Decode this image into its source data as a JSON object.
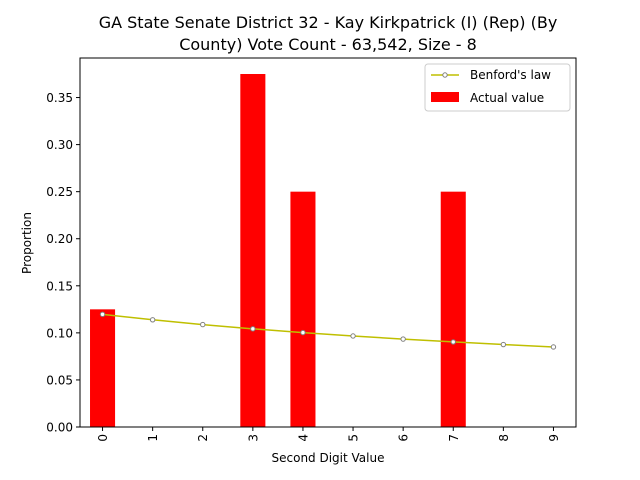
{
  "chart_data": {
    "type": "bar",
    "title_lines": [
      "GA State Senate District 32 - Kay Kirkpatrick (I) (Rep) (By",
      "County) Vote Count - 63,542, Size - 8"
    ],
    "xlabel": "Second Digit Value",
    "ylabel": "Proportion",
    "categories": [
      "0",
      "1",
      "2",
      "3",
      "4",
      "5",
      "6",
      "7",
      "8",
      "9"
    ],
    "ylim": [
      0,
      0.392
    ],
    "yticks": [
      0.0,
      0.05,
      0.1,
      0.15,
      0.2,
      0.25,
      0.3,
      0.35
    ],
    "ytick_labels": [
      "0.00",
      "0.05",
      "0.10",
      "0.15",
      "0.20",
      "0.25",
      "0.30",
      "0.35"
    ],
    "legend_position": "top-right",
    "series": [
      {
        "name": "Benford's law",
        "kind": "line",
        "color": "#bfbf00",
        "marker_edge": "#808080",
        "values": [
          0.1197,
          0.1139,
          0.1088,
          0.1043,
          0.1003,
          0.0967,
          0.0934,
          0.0904,
          0.0876,
          0.085
        ]
      },
      {
        "name": "Actual value",
        "kind": "bar",
        "color": "#ff0000",
        "values": [
          0.125,
          0.0,
          0.0,
          0.375,
          0.25,
          0.0,
          0.0,
          0.25,
          0.0,
          0.0
        ]
      }
    ]
  }
}
